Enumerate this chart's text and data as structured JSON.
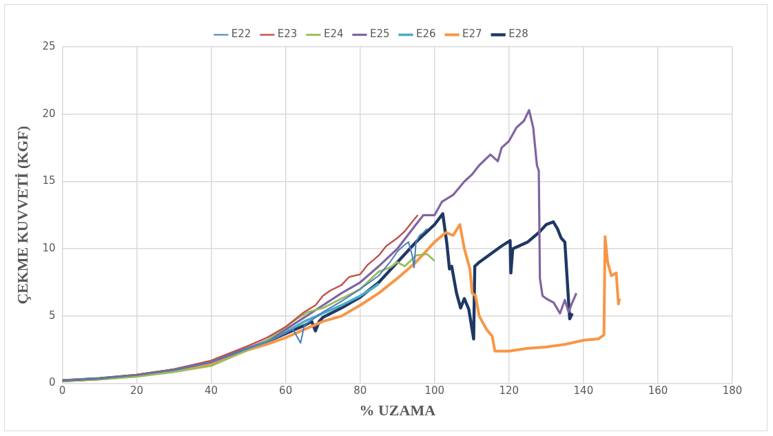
{
  "chart_data": {
    "type": "line",
    "xlabel": "% UZAMA",
    "ylabel": "ÇEKME KUVVETİ (KGF)",
    "xlim": [
      0,
      180
    ],
    "xticks": [
      0,
      20,
      40,
      60,
      80,
      100,
      120,
      140,
      160,
      180
    ],
    "ylim": [
      0,
      25
    ],
    "yticks": [
      0,
      5,
      10,
      15,
      20,
      25
    ],
    "grid": true,
    "legend": "top",
    "marker": "none",
    "line_style": "solid",
    "series": [
      {
        "name": "E22",
        "color": "#4a7ebb",
        "x": [
          0,
          10,
          20,
          30,
          40,
          50,
          55,
          60,
          62,
          64,
          65,
          68,
          70,
          75,
          80,
          85,
          88,
          90,
          92,
          93,
          94,
          94.5,
          95,
          96,
          97,
          98
        ],
        "values": [
          0.2,
          0.35,
          0.6,
          1.0,
          1.6,
          2.6,
          3.1,
          3.8,
          4.0,
          3.0,
          4.3,
          4.9,
          5.3,
          6.1,
          7.0,
          8.0,
          9.0,
          9.8,
          10.3,
          10.5,
          9.5,
          8.6,
          10.5,
          11.0,
          11.2,
          11.5
        ]
      },
      {
        "name": "E23",
        "color": "#c0504d",
        "x": [
          0,
          10,
          20,
          30,
          40,
          50,
          55,
          60,
          65,
          68,
          70,
          72,
          75,
          77,
          80,
          82,
          85,
          87,
          90,
          92,
          94,
          95.5
        ],
        "values": [
          0.2,
          0.35,
          0.65,
          1.05,
          1.7,
          2.8,
          3.4,
          4.2,
          5.3,
          5.8,
          6.5,
          6.9,
          7.3,
          7.9,
          8.1,
          8.8,
          9.5,
          10.2,
          10.8,
          11.3,
          12.0,
          12.5
        ]
      },
      {
        "name": "E24",
        "color": "#9bbb59",
        "x": [
          0,
          10,
          20,
          30,
          40,
          50,
          55,
          60,
          63,
          66,
          70,
          75,
          80,
          85,
          88,
          90,
          92,
          95,
          98,
          100
        ],
        "values": [
          0.15,
          0.3,
          0.5,
          0.85,
          1.3,
          2.5,
          3.2,
          4.2,
          4.8,
          5.3,
          5.6,
          6.3,
          7.0,
          8.3,
          8.6,
          9.0,
          8.7,
          9.5,
          9.6,
          9.1
        ]
      },
      {
        "name": "E25",
        "color": "#8064a2",
        "x": [
          0,
          10,
          20,
          30,
          40,
          50,
          55,
          60,
          65,
          70,
          75,
          80,
          85,
          90,
          95,
          97,
          100,
          102,
          105,
          108,
          110,
          112,
          115,
          117,
          118,
          120,
          122,
          124,
          125.4,
          126.5,
          127.5,
          128,
          128.3,
          129,
          130,
          132,
          133.7,
          135,
          136,
          137,
          138.1
        ],
        "values": [
          0.2,
          0.35,
          0.6,
          1.0,
          1.6,
          2.6,
          3.2,
          4.0,
          4.9,
          5.8,
          6.7,
          7.5,
          8.7,
          10.0,
          11.8,
          12.5,
          12.5,
          13.5,
          14.0,
          15.0,
          15.5,
          16.2,
          17.0,
          16.5,
          17.5,
          18.0,
          19.0,
          19.5,
          20.3,
          19.0,
          16.2,
          15.8,
          7.8,
          6.5,
          6.3,
          6.0,
          5.2,
          6.2,
          5.3,
          6.0,
          6.7
        ]
      },
      {
        "name": "E26",
        "color": "#4bacc6",
        "x": [
          0,
          10,
          20,
          30,
          40,
          50,
          55,
          60,
          65,
          70,
          75,
          80,
          83,
          85
        ],
        "values": [
          0.2,
          0.35,
          0.6,
          1.0,
          1.6,
          2.6,
          3.1,
          3.8,
          4.6,
          5.2,
          5.8,
          6.5,
          7.0,
          7.4
        ]
      },
      {
        "name": "E27",
        "color": "#f79646",
        "x": [
          0,
          10,
          20,
          30,
          40,
          50,
          55,
          60,
          65,
          70,
          75,
          80,
          85,
          90,
          95,
          100,
          103,
          105,
          106.8,
          108,
          109.5,
          110.1,
          111,
          112,
          113,
          114,
          115.5,
          116.2,
          120,
          125,
          130,
          135,
          140,
          144,
          145.5,
          145.8,
          146.5,
          147.5,
          148.8,
          149.4,
          149.7
        ],
        "values": [
          0.2,
          0.33,
          0.55,
          0.95,
          1.4,
          2.5,
          2.9,
          3.4,
          4.0,
          4.6,
          5.0,
          5.8,
          6.7,
          7.8,
          9.0,
          10.5,
          11.2,
          11.0,
          11.8,
          10.0,
          8.5,
          6.7,
          6.5,
          5.0,
          4.5,
          4.0,
          3.5,
          2.4,
          2.4,
          2.6,
          2.7,
          2.9,
          3.2,
          3.3,
          3.6,
          10.9,
          9.0,
          8.0,
          8.2,
          5.9,
          6.3
        ]
      },
      {
        "name": "E28",
        "color": "#1f3864",
        "x": [
          0,
          10,
          20,
          30,
          40,
          50,
          55,
          60,
          65,
          67,
          68,
          69,
          70,
          75,
          80,
          85,
          90,
          95,
          100,
          102.2,
          103.3,
          104,
          104.6,
          105.9,
          107,
          108,
          109.2,
          110.5,
          110.8,
          112,
          115,
          118,
          120.3,
          120.5,
          121,
          125,
          128,
          130,
          131.9,
          133,
          134,
          135,
          136.3,
          137
        ],
        "values": [
          0.2,
          0.35,
          0.6,
          1.0,
          1.6,
          2.6,
          3.1,
          3.7,
          4.3,
          4.6,
          3.9,
          4.6,
          4.9,
          5.6,
          6.4,
          7.5,
          9.0,
          10.5,
          11.8,
          12.6,
          10.4,
          8.5,
          8.7,
          6.7,
          5.6,
          6.3,
          5.5,
          3.3,
          8.7,
          9.0,
          9.6,
          10.2,
          10.6,
          8.2,
          10.0,
          10.5,
          11.2,
          11.8,
          12.0,
          11.5,
          10.8,
          10.5,
          4.8,
          5.2
        ]
      }
    ]
  }
}
